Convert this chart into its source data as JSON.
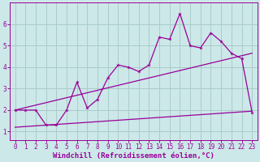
{
  "bg_color": "#cce8e8",
  "grid_color": "#aacccc",
  "line_color": "#990099",
  "xlabel": "Windchill (Refroidissement éolien,°C)",
  "xlabel_fontsize": 6.5,
  "tick_fontsize": 5.5,
  "xlim": [
    -0.5,
    23.5
  ],
  "ylim": [
    0.6,
    7.0
  ],
  "xticks": [
    0,
    1,
    2,
    3,
    4,
    5,
    6,
    7,
    8,
    9,
    10,
    11,
    12,
    13,
    14,
    15,
    16,
    17,
    18,
    19,
    20,
    21,
    22,
    23
  ],
  "yticks": [
    1,
    2,
    3,
    4,
    5,
    6
  ],
  "series1_x": [
    0,
    1,
    2,
    3,
    4,
    5,
    6,
    7,
    8,
    9,
    10,
    11,
    12,
    13,
    14,
    15,
    16,
    17,
    18,
    19,
    20,
    21,
    22,
    23
  ],
  "series1_y": [
    2.0,
    2.0,
    2.0,
    1.3,
    1.3,
    2.0,
    3.3,
    2.1,
    2.5,
    3.5,
    4.1,
    4.0,
    3.8,
    4.1,
    5.4,
    5.3,
    6.5,
    5.0,
    4.9,
    5.6,
    5.2,
    4.65,
    4.4,
    1.9
  ],
  "series2_x": [
    0,
    23
  ],
  "series2_y": [
    2.0,
    4.65
  ],
  "series3_x": [
    0,
    23
  ],
  "series3_y": [
    1.2,
    1.95
  ]
}
